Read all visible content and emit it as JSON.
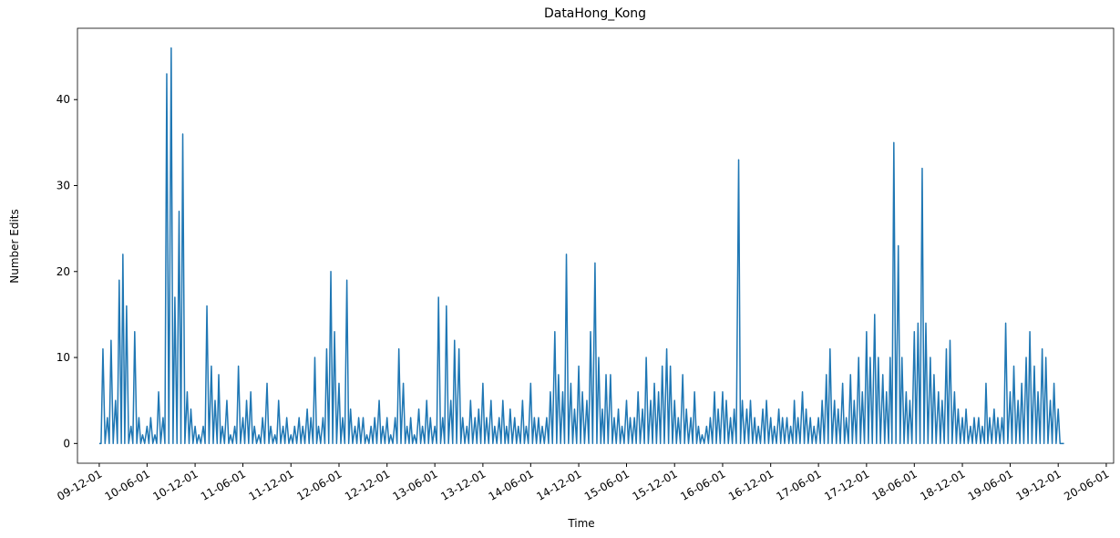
{
  "chart_data": {
    "type": "line",
    "title": "DataHong_Kong",
    "x_label": "Time",
    "y_label": "Number Edits",
    "color": "#1f77b4",
    "xlim": [
      "2009-09-09",
      "2020-06-29"
    ],
    "ylim": [
      -2.3,
      48.3
    ],
    "yticks": [
      0,
      10,
      20,
      30,
      40
    ],
    "xticks": [
      {
        "value": "2009-12-01",
        "label": "09-12-01"
      },
      {
        "value": "2010-06-01",
        "label": "10-06-01"
      },
      {
        "value": "2010-12-01",
        "label": "10-12-01"
      },
      {
        "value": "2011-06-01",
        "label": "11-06-01"
      },
      {
        "value": "2011-12-01",
        "label": "11-12-01"
      },
      {
        "value": "2012-06-01",
        "label": "12-06-01"
      },
      {
        "value": "2012-12-01",
        "label": "12-12-01"
      },
      {
        "value": "2013-06-01",
        "label": "13-06-01"
      },
      {
        "value": "2013-12-01",
        "label": "13-12-01"
      },
      {
        "value": "2014-06-01",
        "label": "14-06-01"
      },
      {
        "value": "2014-12-01",
        "label": "14-12-01"
      },
      {
        "value": "2015-06-01",
        "label": "15-06-01"
      },
      {
        "value": "2015-12-01",
        "label": "15-12-01"
      },
      {
        "value": "2016-06-01",
        "label": "16-06-01"
      },
      {
        "value": "2016-12-01",
        "label": "16-12-01"
      },
      {
        "value": "2017-06-01",
        "label": "17-06-01"
      },
      {
        "value": "2017-12-01",
        "label": "17-12-01"
      },
      {
        "value": "2018-06-01",
        "label": "18-06-01"
      },
      {
        "value": "2018-12-01",
        "label": "18-12-01"
      },
      {
        "value": "2019-06-01",
        "label": "19-06-01"
      },
      {
        "value": "2019-12-01",
        "label": "19-12-01"
      },
      {
        "value": "2020-06-01",
        "label": "20-06-01"
      }
    ],
    "x": [
      "2009-12-01",
      "2009-12-08",
      "2009-12-15",
      "2009-12-23",
      "2010-01-01",
      "2010-01-08",
      "2010-01-15",
      "2010-01-23",
      "2010-02-01",
      "2010-02-08",
      "2010-02-15",
      "2010-02-23",
      "2010-03-01",
      "2010-03-08",
      "2010-03-15",
      "2010-03-23",
      "2010-04-01",
      "2010-04-08",
      "2010-04-15",
      "2010-04-23",
      "2010-05-01",
      "2010-05-08",
      "2010-05-15",
      "2010-05-23",
      "2010-06-01",
      "2010-06-08",
      "2010-06-15",
      "2010-06-23",
      "2010-07-01",
      "2010-07-08",
      "2010-07-15",
      "2010-07-23",
      "2010-08-01",
      "2010-08-08",
      "2010-08-15",
      "2010-08-23",
      "2010-09-01",
      "2010-09-08",
      "2010-09-15",
      "2010-09-23",
      "2010-10-01",
      "2010-10-08",
      "2010-10-15",
      "2010-10-23",
      "2010-11-01",
      "2010-11-08",
      "2010-11-15",
      "2010-11-23",
      "2010-12-01",
      "2010-12-08",
      "2010-12-15",
      "2010-12-23",
      "2011-01-01",
      "2011-01-08",
      "2011-01-15",
      "2011-01-23",
      "2011-02-01",
      "2011-02-08",
      "2011-02-15",
      "2011-02-23",
      "2011-03-01",
      "2011-03-08",
      "2011-03-15",
      "2011-03-23",
      "2011-04-01",
      "2011-04-08",
      "2011-04-15",
      "2011-04-23",
      "2011-05-01",
      "2011-05-08",
      "2011-05-15",
      "2011-05-23",
      "2011-06-01",
      "2011-06-08",
      "2011-06-15",
      "2011-06-23",
      "2011-07-01",
      "2011-07-08",
      "2011-07-15",
      "2011-07-23",
      "2011-08-01",
      "2011-08-08",
      "2011-08-15",
      "2011-08-23",
      "2011-09-01",
      "2011-09-08",
      "2011-09-15",
      "2011-09-23",
      "2011-10-01",
      "2011-10-08",
      "2011-10-15",
      "2011-10-23",
      "2011-11-01",
      "2011-11-08",
      "2011-11-15",
      "2011-11-23",
      "2011-12-01",
      "2011-12-08",
      "2011-12-15",
      "2011-12-23",
      "2012-01-01",
      "2012-01-08",
      "2012-01-15",
      "2012-01-23",
      "2012-02-01",
      "2012-02-08",
      "2012-02-15",
      "2012-02-23",
      "2012-03-01",
      "2012-03-08",
      "2012-03-15",
      "2012-03-23",
      "2012-04-01",
      "2012-04-08",
      "2012-04-15",
      "2012-04-23",
      "2012-05-01",
      "2012-05-08",
      "2012-05-15",
      "2012-05-23",
      "2012-06-01",
      "2012-06-08",
      "2012-06-15",
      "2012-06-23",
      "2012-07-01",
      "2012-07-08",
      "2012-07-15",
      "2012-07-23",
      "2012-08-01",
      "2012-08-08",
      "2012-08-15",
      "2012-08-23",
      "2012-09-01",
      "2012-09-08",
      "2012-09-15",
      "2012-09-23",
      "2012-10-01",
      "2012-10-08",
      "2012-10-15",
      "2012-10-23",
      "2012-11-01",
      "2012-11-08",
      "2012-11-15",
      "2012-11-23",
      "2012-12-01",
      "2012-12-08",
      "2012-12-15",
      "2012-12-23",
      "2013-01-01",
      "2013-01-08",
      "2013-01-15",
      "2013-01-23",
      "2013-02-01",
      "2013-02-08",
      "2013-02-15",
      "2013-02-23",
      "2013-03-01",
      "2013-03-08",
      "2013-03-15",
      "2013-03-23",
      "2013-04-01",
      "2013-04-08",
      "2013-04-15",
      "2013-04-23",
      "2013-05-01",
      "2013-05-08",
      "2013-05-15",
      "2013-05-23",
      "2013-06-01",
      "2013-06-08",
      "2013-06-15",
      "2013-06-23",
      "2013-07-01",
      "2013-07-08",
      "2013-07-15",
      "2013-07-23",
      "2013-08-01",
      "2013-08-08",
      "2013-08-15",
      "2013-08-23",
      "2013-09-01",
      "2013-09-08",
      "2013-09-15",
      "2013-09-23",
      "2013-10-01",
      "2013-10-08",
      "2013-10-15",
      "2013-10-23",
      "2013-11-01",
      "2013-11-08",
      "2013-11-15",
      "2013-11-23",
      "2013-12-01",
      "2013-12-08",
      "2013-12-15",
      "2013-12-23",
      "2014-01-01",
      "2014-01-08",
      "2014-01-15",
      "2014-01-23",
      "2014-02-01",
      "2014-02-08",
      "2014-02-15",
      "2014-02-23",
      "2014-03-01",
      "2014-03-08",
      "2014-03-15",
      "2014-03-23",
      "2014-04-01",
      "2014-04-08",
      "2014-04-15",
      "2014-04-23",
      "2014-05-01",
      "2014-05-08",
      "2014-05-15",
      "2014-05-23",
      "2014-06-01",
      "2014-06-08",
      "2014-06-15",
      "2014-06-23",
      "2014-07-01",
      "2014-07-08",
      "2014-07-15",
      "2014-07-23",
      "2014-08-01",
      "2014-08-08",
      "2014-08-15",
      "2014-08-23",
      "2014-09-01",
      "2014-09-08",
      "2014-09-15",
      "2014-09-23",
      "2014-10-01",
      "2014-10-08",
      "2014-10-15",
      "2014-10-23",
      "2014-11-01",
      "2014-11-08",
      "2014-11-15",
      "2014-11-23",
      "2014-12-01",
      "2014-12-08",
      "2014-12-15",
      "2014-12-23",
      "2015-01-01",
      "2015-01-08",
      "2015-01-15",
      "2015-01-23",
      "2015-02-01",
      "2015-02-08",
      "2015-02-15",
      "2015-02-23",
      "2015-03-01",
      "2015-03-08",
      "2015-03-15",
      "2015-03-23",
      "2015-04-01",
      "2015-04-08",
      "2015-04-15",
      "2015-04-23",
      "2015-05-01",
      "2015-05-08",
      "2015-05-15",
      "2015-05-23",
      "2015-06-01",
      "2015-06-08",
      "2015-06-15",
      "2015-06-23",
      "2015-07-01",
      "2015-07-08",
      "2015-07-15",
      "2015-07-23",
      "2015-08-01",
      "2015-08-08",
      "2015-08-15",
      "2015-08-23",
      "2015-09-01",
      "2015-09-08",
      "2015-09-15",
      "2015-09-23",
      "2015-10-01",
      "2015-10-08",
      "2015-10-15",
      "2015-10-23",
      "2015-11-01",
      "2015-11-08",
      "2015-11-15",
      "2015-11-23",
      "2015-12-01",
      "2015-12-08",
      "2015-12-15",
      "2015-12-23",
      "2016-01-01",
      "2016-01-08",
      "2016-01-15",
      "2016-01-23",
      "2016-02-01",
      "2016-02-08",
      "2016-02-15",
      "2016-02-23",
      "2016-03-01",
      "2016-03-08",
      "2016-03-15",
      "2016-03-23",
      "2016-04-01",
      "2016-04-08",
      "2016-04-15",
      "2016-04-23",
      "2016-05-01",
      "2016-05-08",
      "2016-05-15",
      "2016-05-23",
      "2016-06-01",
      "2016-06-08",
      "2016-06-15",
      "2016-06-23",
      "2016-07-01",
      "2016-07-08",
      "2016-07-15",
      "2016-07-23",
      "2016-08-01",
      "2016-08-08",
      "2016-08-15",
      "2016-08-23",
      "2016-09-01",
      "2016-09-08",
      "2016-09-15",
      "2016-09-23",
      "2016-10-01",
      "2016-10-08",
      "2016-10-15",
      "2016-10-23",
      "2016-11-01",
      "2016-11-08",
      "2016-11-15",
      "2016-11-23",
      "2016-12-01",
      "2016-12-08",
      "2016-12-15",
      "2016-12-23",
      "2017-01-01",
      "2017-01-08",
      "2017-01-15",
      "2017-01-23",
      "2017-02-01",
      "2017-02-08",
      "2017-02-15",
      "2017-02-23",
      "2017-03-01",
      "2017-03-08",
      "2017-03-15",
      "2017-03-23",
      "2017-04-01",
      "2017-04-08",
      "2017-04-15",
      "2017-04-23",
      "2017-05-01",
      "2017-05-08",
      "2017-05-15",
      "2017-05-23",
      "2017-06-01",
      "2017-06-08",
      "2017-06-15",
      "2017-06-23",
      "2017-07-01",
      "2017-07-08",
      "2017-07-15",
      "2017-07-23",
      "2017-08-01",
      "2017-08-08",
      "2017-08-15",
      "2017-08-23",
      "2017-09-01",
      "2017-09-08",
      "2017-09-15",
      "2017-09-23",
      "2017-10-01",
      "2017-10-08",
      "2017-10-15",
      "2017-10-23",
      "2017-11-01",
      "2017-11-08",
      "2017-11-15",
      "2017-11-23",
      "2017-12-01",
      "2017-12-08",
      "2017-12-15",
      "2017-12-23",
      "2018-01-01",
      "2018-01-08",
      "2018-01-15",
      "2018-01-23",
      "2018-02-01",
      "2018-02-08",
      "2018-02-15",
      "2018-02-23",
      "2018-03-01",
      "2018-03-08",
      "2018-03-15",
      "2018-03-23",
      "2018-04-01",
      "2018-04-08",
      "2018-04-15",
      "2018-04-23",
      "2018-05-01",
      "2018-05-08",
      "2018-05-15",
      "2018-05-23",
      "2018-06-01",
      "2018-06-08",
      "2018-06-15",
      "2018-06-23",
      "2018-07-01",
      "2018-07-08",
      "2018-07-15",
      "2018-07-23",
      "2018-08-01",
      "2018-08-08",
      "2018-08-15",
      "2018-08-23",
      "2018-09-01",
      "2018-09-08",
      "2018-09-15",
      "2018-09-23",
      "2018-10-01",
      "2018-10-08",
      "2018-10-15",
      "2018-10-23",
      "2018-11-01",
      "2018-11-08",
      "2018-11-15",
      "2018-11-23",
      "2018-12-01",
      "2018-12-08",
      "2018-12-15",
      "2018-12-23",
      "2019-01-01",
      "2019-01-08",
      "2019-01-15",
      "2019-01-23",
      "2019-02-01",
      "2019-02-08",
      "2019-02-15",
      "2019-02-23",
      "2019-03-01",
      "2019-03-08",
      "2019-03-15",
      "2019-03-23",
      "2019-04-01",
      "2019-04-08",
      "2019-04-15",
      "2019-04-23",
      "2019-05-01",
      "2019-05-08",
      "2019-05-15",
      "2019-05-23",
      "2019-06-01",
      "2019-06-08",
      "2019-06-15",
      "2019-06-23",
      "2019-07-01",
      "2019-07-08",
      "2019-07-15",
      "2019-07-23",
      "2019-08-01",
      "2019-08-08",
      "2019-08-15",
      "2019-08-23",
      "2019-09-01",
      "2019-09-08",
      "2019-09-15",
      "2019-09-23",
      "2019-10-01",
      "2019-10-08",
      "2019-10-15",
      "2019-10-23",
      "2019-11-01",
      "2019-11-08",
      "2019-11-15",
      "2019-11-23",
      "2019-12-01",
      "2019-12-08",
      "2019-12-15",
      "2019-12-23"
    ],
    "values": [
      0,
      0,
      11,
      0,
      3,
      0,
      12,
      0,
      5,
      0,
      19,
      0,
      22,
      0,
      16,
      0,
      2,
      0,
      13,
      0,
      3,
      0,
      1,
      0,
      2,
      0,
      3,
      0,
      1,
      0,
      6,
      0,
      3,
      0,
      43,
      0,
      46,
      0,
      17,
      0,
      27,
      0,
      36,
      0,
      6,
      0,
      4,
      0,
      2,
      0,
      1,
      0,
      2,
      0,
      16,
      0,
      9,
      0,
      5,
      0,
      8,
      0,
      2,
      0,
      5,
      0,
      1,
      0,
      2,
      0,
      9,
      0,
      3,
      0,
      5,
      0,
      6,
      0,
      2,
      0,
      1,
      0,
      3,
      0,
      7,
      0,
      2,
      0,
      1,
      0,
      5,
      0,
      2,
      0,
      3,
      0,
      1,
      0,
      2,
      0,
      3,
      0,
      2,
      0,
      4,
      0,
      3,
      0,
      10,
      0,
      2,
      0,
      3,
      0,
      11,
      0,
      20,
      0,
      13,
      0,
      7,
      0,
      3,
      0,
      19,
      0,
      4,
      0,
      2,
      0,
      3,
      0,
      3,
      0,
      1,
      0,
      2,
      0,
      3,
      0,
      5,
      0,
      2,
      0,
      3,
      0,
      1,
      0,
      3,
      0,
      11,
      0,
      7,
      0,
      2,
      0,
      3,
      0,
      1,
      0,
      4,
      0,
      2,
      0,
      5,
      0,
      3,
      0,
      2,
      0,
      17,
      0,
      3,
      0,
      16,
      0,
      5,
      0,
      12,
      0,
      11,
      0,
      3,
      0,
      2,
      0,
      5,
      0,
      3,
      0,
      4,
      0,
      7,
      0,
      3,
      0,
      5,
      0,
      2,
      0,
      3,
      0,
      5,
      0,
      2,
      0,
      4,
      0,
      3,
      0,
      2,
      0,
      5,
      0,
      2,
      0,
      7,
      0,
      3,
      0,
      3,
      0,
      2,
      0,
      3,
      0,
      6,
      0,
      13,
      0,
      8,
      0,
      6,
      0,
      22,
      0,
      7,
      0,
      4,
      0,
      9,
      0,
      6,
      0,
      5,
      0,
      13,
      0,
      21,
      0,
      10,
      0,
      4,
      0,
      8,
      0,
      8,
      0,
      3,
      0,
      4,
      0,
      2,
      0,
      5,
      0,
      3,
      0,
      3,
      0,
      6,
      0,
      4,
      0,
      10,
      0,
      5,
      0,
      7,
      0,
      6,
      0,
      9,
      0,
      11,
      0,
      9,
      0,
      5,
      0,
      3,
      0,
      8,
      0,
      4,
      0,
      3,
      0,
      6,
      0,
      2,
      0,
      1,
      0,
      2,
      0,
      3,
      0,
      6,
      0,
      4,
      0,
      6,
      0,
      5,
      0,
      3,
      0,
      4,
      0,
      33,
      0,
      5,
      0,
      4,
      0,
      5,
      0,
      3,
      0,
      2,
      0,
      4,
      0,
      5,
      0,
      3,
      0,
      2,
      0,
      4,
      0,
      3,
      0,
      3,
      0,
      2,
      0,
      5,
      0,
      3,
      0,
      6,
      0,
      4,
      0,
      3,
      0,
      2,
      0,
      3,
      0,
      5,
      0,
      8,
      0,
      11,
      0,
      5,
      0,
      4,
      0,
      7,
      0,
      3,
      0,
      8,
      0,
      5,
      0,
      10,
      0,
      6,
      0,
      13,
      0,
      10,
      0,
      15,
      0,
      10,
      0,
      8,
      0,
      6,
      0,
      10,
      0,
      35,
      0,
      23,
      0,
      10,
      0,
      6,
      0,
      5,
      0,
      13,
      0,
      14,
      0,
      32,
      0,
      14,
      0,
      10,
      0,
      8,
      0,
      6,
      0,
      5,
      0,
      11,
      0,
      12,
      0,
      6,
      0,
      4,
      0,
      3,
      0,
      4,
      0,
      2,
      0,
      3,
      0,
      3,
      0,
      2,
      0,
      7,
      0,
      3,
      0,
      4,
      0,
      3,
      0,
      3,
      0,
      14,
      0,
      6,
      0,
      9,
      0,
      5,
      0,
      7,
      0,
      10,
      0,
      13,
      0,
      9,
      0,
      6,
      0,
      11,
      0,
      10,
      0,
      5,
      0,
      7,
      0,
      4,
      0,
      0,
      0
    ]
  }
}
